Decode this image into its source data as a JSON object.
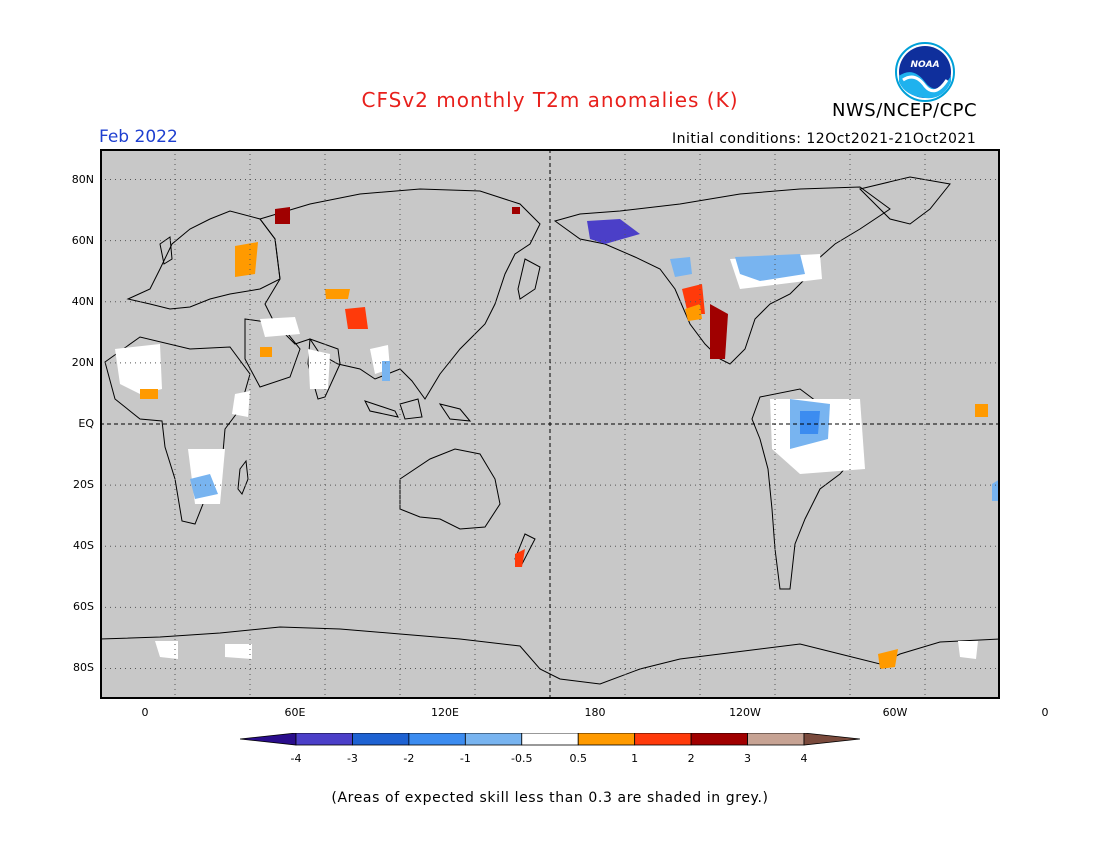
{
  "title": "CFSv2 monthly T2m anomalies (K)",
  "agency": "NWS/NCEP/CPC",
  "logo_text": "NOAA",
  "period": "Feb 2022",
  "initial_conditions": "Initial conditions: 12Oct2021-21Oct2021",
  "footnote": "(Areas of expected skill less than 0.3 are shaded in grey.)",
  "map": {
    "projection": "equirectangular",
    "center_longitude": 180,
    "lat_range": [
      -90,
      90
    ],
    "lat_labels": [
      "80N",
      "60N",
      "40N",
      "20N",
      "EQ",
      "20S",
      "40S",
      "60S",
      "80S"
    ],
    "lon_labels": [
      "0",
      "60E",
      "120E",
      "180",
      "120W",
      "60W",
      "0"
    ],
    "background_color": "#c8c8c8"
  },
  "colorbar": {
    "tick_labels": [
      "-4",
      "-3",
      "-2",
      "-1",
      "-0.5",
      "0.5",
      "1",
      "2",
      "3",
      "4"
    ],
    "colors": [
      "#2a0d8c",
      "#4b3fc8",
      "#1e62d2",
      "#3c8cf0",
      "#78b4f0",
      "#ffffff",
      "#ff9a00",
      "#ff3a0a",
      "#a00000",
      "#c7a394",
      "#7a4a3c"
    ]
  }
}
